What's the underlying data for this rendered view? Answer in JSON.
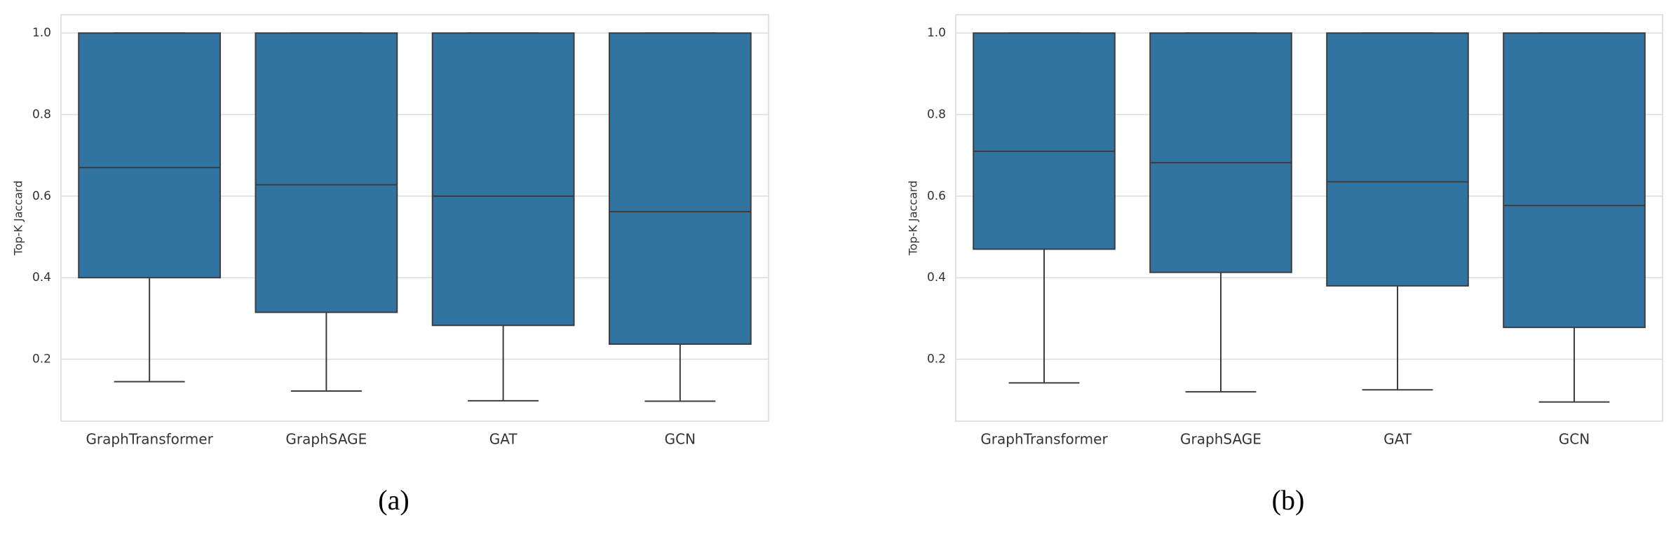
{
  "chart_data": [
    {
      "type": "box",
      "ylabel": "Top-K Jaccard",
      "caption": "(a)",
      "categories": [
        "GraphTransformer",
        "GraphSAGE",
        "GAT",
        "GCN"
      ],
      "boxes": [
        {
          "whislo": 0.145,
          "q1": 0.4,
          "med": 0.67,
          "q3": 1.0,
          "whishi": 1.0
        },
        {
          "whislo": 0.122,
          "q1": 0.315,
          "med": 0.628,
          "q3": 1.0,
          "whishi": 1.0
        },
        {
          "whislo": 0.098,
          "q1": 0.283,
          "med": 0.6,
          "q3": 1.0,
          "whishi": 1.0
        },
        {
          "whislo": 0.097,
          "q1": 0.237,
          "med": 0.562,
          "q3": 1.0,
          "whishi": 1.0
        }
      ],
      "color": "#3274a1",
      "ylim": [
        0.048,
        1.045
      ],
      "yticks": [
        0.2,
        0.4,
        0.6,
        0.8,
        {
          "value": 1,
          "label": "1.0"
        }
      ],
      "grid": true
    },
    {
      "type": "box",
      "ylabel": "Top-K Jaccard",
      "caption": "(b)",
      "categories": [
        "GraphTransformer",
        "GraphSAGE",
        "GAT",
        "GCN"
      ],
      "boxes": [
        {
          "whislo": 0.142,
          "q1": 0.47,
          "med": 0.71,
          "q3": 1.0,
          "whishi": 1.0
        },
        {
          "whislo": 0.12,
          "q1": 0.413,
          "med": 0.682,
          "q3": 1.0,
          "whishi": 1.0
        },
        {
          "whislo": 0.125,
          "q1": 0.38,
          "med": 0.635,
          "q3": 1.0,
          "whishi": 1.0
        },
        {
          "whislo": 0.095,
          "q1": 0.278,
          "med": 0.577,
          "q3": 1.0,
          "whishi": 1.0
        }
      ],
      "color": "#3274a1",
      "ylim": [
        0.048,
        1.045
      ],
      "yticks": [
        0.2,
        0.4,
        0.6,
        0.8,
        {
          "value": 1,
          "label": "1.0"
        }
      ],
      "grid": true
    }
  ]
}
